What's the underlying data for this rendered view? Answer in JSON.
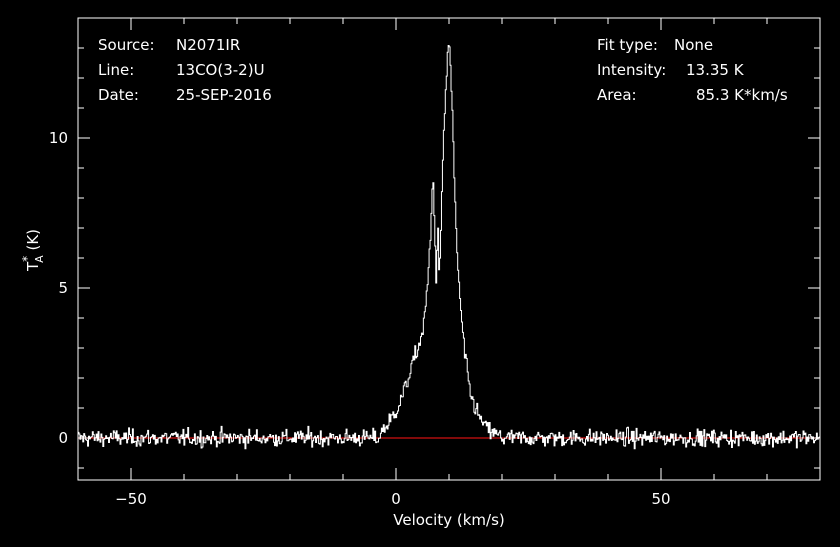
{
  "info": {
    "source_label": "Source:",
    "source_value": "N2071IR",
    "line_label": "Line:",
    "line_value": "13CO(3-2)U",
    "date_label": "Date:",
    "date_value": "25-SEP-2016",
    "fit_label": "Fit type:",
    "fit_value": "None",
    "intensity_label": "Intensity:",
    "intensity_value": "13.35 K",
    "area_label": "Area:",
    "area_value": "85.3 K*km/s"
  },
  "colors": {
    "background": "#000000",
    "spectrum": "#ffffff",
    "baseline": "#d01010",
    "axes": "#ffffff"
  },
  "chart_data": {
    "type": "line",
    "xlabel": "Velocity (km/s)",
    "ylabel_main": "T",
    "ylabel_super": "*",
    "ylabel_sub": "A",
    "ylabel_unit": " (K)",
    "xlim": [
      -60,
      80
    ],
    "ylim": [
      -1.4,
      14
    ],
    "xticks": [
      -50,
      0,
      50
    ],
    "yticks": [
      0,
      5,
      10
    ],
    "xtick_labels": [
      "−50",
      "0",
      "50"
    ],
    "ytick_labels": [
      "0",
      "5",
      "10"
    ],
    "baseline_y": 0,
    "noise_rms": 0.14,
    "noise_range_x": [
      -60,
      80
    ],
    "series": [
      {
        "style": "histogram",
        "x": [
          -3,
          -2,
          -1,
          0,
          1,
          2,
          3,
          4,
          5,
          5.5,
          6,
          6.5,
          7,
          7.3,
          7.6,
          7.9,
          8.2,
          8.5,
          8.8,
          9.1,
          9.4,
          9.7,
          10,
          10.3,
          10.6,
          10.9,
          11.2,
          11.5,
          12,
          12.5,
          13,
          13.5,
          14,
          15,
          16,
          17,
          18,
          19,
          20
        ],
        "y": [
          0.2,
          0.35,
          0.6,
          0.9,
          1.3,
          1.8,
          2.4,
          2.9,
          3.5,
          4.2,
          5.2,
          6.6,
          8.8,
          7.3,
          4.9,
          7.6,
          5.0,
          7.1,
          9.0,
          10.3,
          11.6,
          12.6,
          13.35,
          12.4,
          11.1,
          9.3,
          7.6,
          6.4,
          4.8,
          3.7,
          2.8,
          2.1,
          1.5,
          1.0,
          0.6,
          0.35,
          0.2,
          0.1,
          0.05
        ]
      }
    ]
  }
}
